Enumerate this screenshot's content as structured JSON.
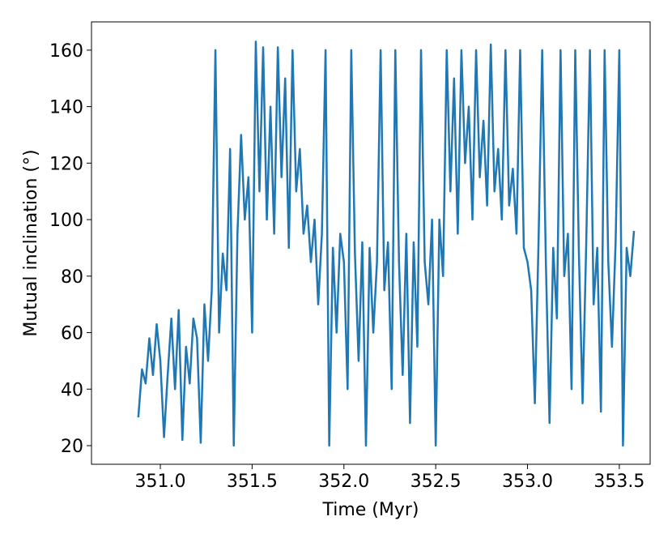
{
  "chart_data": {
    "type": "line",
    "xlabel": "Time (Myr)",
    "ylabel": "Mutual inclination (°)",
    "color": "#1f77b4",
    "xlim": [
      350.625,
      353.668
    ],
    "ylim": [
      13.4,
      170.0
    ],
    "xticks": [
      {
        "value": 351,
        "label": "351.0"
      },
      351.5,
      {
        "value": 352,
        "label": "352.0"
      },
      352.5,
      {
        "value": 353,
        "label": "353.0"
      },
      353.5
    ],
    "yticks": [
      20,
      40,
      60,
      80,
      100,
      120,
      140,
      160
    ],
    "x": [
      350.88,
      350.9,
      350.92,
      350.94,
      350.96,
      350.98,
      351.0,
      351.02,
      351.04,
      351.06,
      351.08,
      351.1,
      351.12,
      351.14,
      351.16,
      351.18,
      351.2,
      351.22,
      351.24,
      351.26,
      351.28,
      351.3,
      351.32,
      351.34,
      351.36,
      351.38,
      351.4,
      351.42,
      351.44,
      351.46,
      351.48,
      351.5,
      351.52,
      351.54,
      351.56,
      351.58,
      351.6,
      351.62,
      351.64,
      351.66,
      351.68,
      351.7,
      351.72,
      351.74,
      351.76,
      351.78,
      351.8,
      351.82,
      351.84,
      351.86,
      351.88,
      351.9,
      351.92,
      351.94,
      351.96,
      351.98,
      352.0,
      352.02,
      352.04,
      352.06,
      352.08,
      352.1,
      352.12,
      352.14,
      352.16,
      352.18,
      352.2,
      352.22,
      352.24,
      352.26,
      352.28,
      352.3,
      352.32,
      352.34,
      352.36,
      352.38,
      352.4,
      352.42,
      352.44,
      352.46,
      352.48,
      352.5,
      352.52,
      352.54,
      352.56,
      352.58,
      352.6,
      352.62,
      352.64,
      352.66,
      352.68,
      352.7,
      352.72,
      352.74,
      352.76,
      352.78,
      352.8,
      352.82,
      352.84,
      352.86,
      352.88,
      352.9,
      352.92,
      352.94,
      352.96,
      352.98,
      353.0,
      353.02,
      353.04,
      353.06,
      353.08,
      353.1,
      353.12,
      353.14,
      353.16,
      353.18,
      353.2,
      353.22,
      353.24,
      353.26,
      353.28,
      353.3,
      353.32,
      353.34,
      353.36,
      353.38,
      353.4,
      353.42,
      353.44,
      353.46,
      353.48,
      353.5,
      353.52,
      353.54,
      353.56,
      353.58
    ],
    "values": [
      30,
      47,
      42,
      58,
      45,
      63,
      50,
      23,
      45,
      65,
      40,
      68,
      22,
      55,
      42,
      65,
      58,
      21,
      70,
      50,
      75,
      160,
      60,
      88,
      75,
      125,
      20,
      95,
      130,
      100,
      115,
      60,
      163,
      110,
      161,
      100,
      140,
      95,
      161,
      115,
      150,
      90,
      160,
      110,
      125,
      95,
      105,
      85,
      100,
      70,
      95,
      160,
      20,
      90,
      60,
      95,
      85,
      40,
      160,
      88,
      50,
      92,
      20,
      90,
      60,
      85,
      160,
      75,
      92,
      40,
      160,
      85,
      45,
      95,
      28,
      92,
      55,
      160,
      85,
      70,
      100,
      20,
      100,
      80,
      160,
      110,
      150,
      95,
      160,
      120,
      140,
      100,
      160,
      115,
      135,
      105,
      162,
      110,
      125,
      100,
      160,
      105,
      118,
      95,
      160,
      90,
      85,
      75,
      35,
      92,
      160,
      85,
      28,
      90,
      65,
      160,
      80,
      95,
      40,
      160,
      88,
      35,
      92,
      160,
      70,
      90,
      32,
      160,
      85,
      55,
      92,
      160,
      20,
      90,
      80,
      96
    ]
  }
}
